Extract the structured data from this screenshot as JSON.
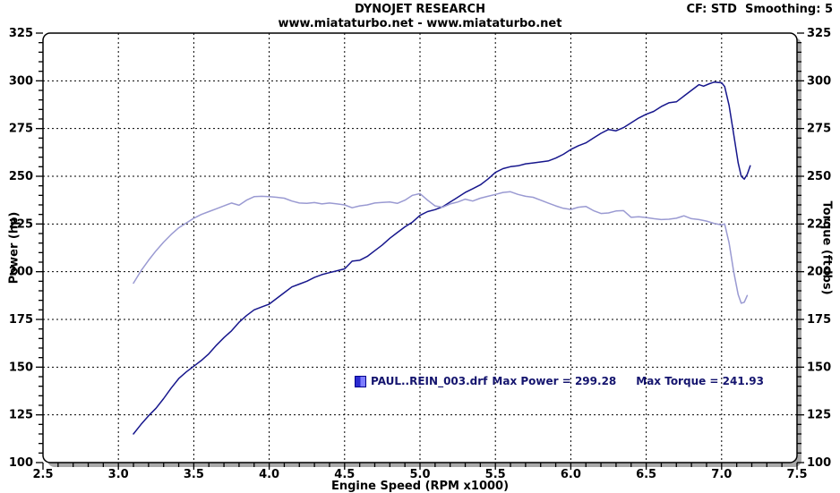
{
  "header": {
    "title": "DYNOJET RESEARCH",
    "subtitle": "www.miataturbo.net - www.miataturbo.net",
    "cf_note": "CF: STD  Smoothing: 5"
  },
  "legend": {
    "file": "PAUL..REIN_003.drf",
    "max_power": "Max Power = 299.28",
    "max_torque": "Max Torque = 241.93"
  },
  "colors": {
    "power_curve": "#16168c",
    "torque_curve": "#9a9ad2",
    "grid": "#000000",
    "shadow": "#a9a9a9",
    "plot_background": "#ffffff",
    "legend_text": "#14146e"
  },
  "chart_data": {
    "type": "line",
    "title": "DYNOJET RESEARCH",
    "subtitle": "www.miataturbo.net - www.miataturbo.net",
    "xlabel": "Engine Speed (RPM x1000)",
    "ylabel_left": "Power (hp)",
    "ylabel_right": "Torque (ft-lbs)",
    "xlim": [
      2.5,
      7.5
    ],
    "ylim": [
      100,
      325
    ],
    "x_ticks": [
      "2.5",
      "3.0",
      "3.5",
      "4.0",
      "4.5",
      "5.0",
      "5.5",
      "6.0",
      "6.5",
      "7.0",
      "7.5"
    ],
    "y_ticks": [
      "100",
      "125",
      "150",
      "175",
      "200",
      "225",
      "250",
      "275",
      "300",
      "325"
    ],
    "x_minor_step": 0.1,
    "y_minor_step": 5,
    "grid": "dashed at major ticks",
    "legend_position": "inside lower-center",
    "max_power": 299.28,
    "max_torque": 241.93,
    "smoothing": 5,
    "correction_factor": "STD",
    "series": [
      {
        "name": "Power (hp)",
        "data_name": "power-curve",
        "color": "#16168c",
        "points": [
          [
            3.1,
            115
          ],
          [
            3.15,
            120
          ],
          [
            3.2,
            124.5
          ],
          [
            3.25,
            128.5
          ],
          [
            3.3,
            133.5
          ],
          [
            3.35,
            139
          ],
          [
            3.4,
            144
          ],
          [
            3.45,
            147.5
          ],
          [
            3.5,
            150.5
          ],
          [
            3.55,
            153.5
          ],
          [
            3.6,
            157
          ],
          [
            3.65,
            161.5
          ],
          [
            3.7,
            165.5
          ],
          [
            3.75,
            169
          ],
          [
            3.8,
            173.5
          ],
          [
            3.85,
            177
          ],
          [
            3.9,
            180
          ],
          [
            3.95,
            181.5
          ],
          [
            4.0,
            183
          ],
          [
            4.05,
            186
          ],
          [
            4.1,
            189
          ],
          [
            4.15,
            192
          ],
          [
            4.2,
            193.5
          ],
          [
            4.25,
            195
          ],
          [
            4.3,
            197
          ],
          [
            4.35,
            198.5
          ],
          [
            4.4,
            199.5
          ],
          [
            4.45,
            200.5
          ],
          [
            4.5,
            201.5
          ],
          [
            4.55,
            205.5
          ],
          [
            4.6,
            206
          ],
          [
            4.65,
            208
          ],
          [
            4.7,
            211
          ],
          [
            4.75,
            214
          ],
          [
            4.8,
            217.5
          ],
          [
            4.85,
            220.5
          ],
          [
            4.9,
            223.5
          ],
          [
            4.95,
            226
          ],
          [
            5.0,
            229.5
          ],
          [
            5.05,
            231.5
          ],
          [
            5.1,
            232.5
          ],
          [
            5.15,
            234
          ],
          [
            5.2,
            236.5
          ],
          [
            5.25,
            239
          ],
          [
            5.3,
            241.5
          ],
          [
            5.35,
            243.5
          ],
          [
            5.4,
            245.5
          ],
          [
            5.45,
            248.5
          ],
          [
            5.5,
            252
          ],
          [
            5.55,
            254
          ],
          [
            5.6,
            255
          ],
          [
            5.65,
            255.5
          ],
          [
            5.7,
            256.5
          ],
          [
            5.75,
            257
          ],
          [
            5.8,
            257.5
          ],
          [
            5.85,
            258
          ],
          [
            5.9,
            259.5
          ],
          [
            5.95,
            261.5
          ],
          [
            6.0,
            264
          ],
          [
            6.05,
            266
          ],
          [
            6.1,
            267.5
          ],
          [
            6.15,
            270
          ],
          [
            6.2,
            272.5
          ],
          [
            6.25,
            274.5
          ],
          [
            6.3,
            273.8
          ],
          [
            6.35,
            275.5
          ],
          [
            6.4,
            278
          ],
          [
            6.45,
            280.5
          ],
          [
            6.5,
            282.5
          ],
          [
            6.55,
            284
          ],
          [
            6.6,
            286.5
          ],
          [
            6.65,
            288.5
          ],
          [
            6.7,
            289
          ],
          [
            6.75,
            292
          ],
          [
            6.8,
            295
          ],
          [
            6.85,
            298
          ],
          [
            6.88,
            297.2
          ],
          [
            6.92,
            298.5
          ],
          [
            6.95,
            299.3
          ],
          [
            7.0,
            299
          ],
          [
            7.02,
            297
          ],
          [
            7.05,
            287
          ],
          [
            7.08,
            272
          ],
          [
            7.11,
            257
          ],
          [
            7.13,
            250
          ],
          [
            7.15,
            248.5
          ],
          [
            7.17,
            251
          ],
          [
            7.19,
            255.5
          ]
        ]
      },
      {
        "name": "Torque (ft-lbs)",
        "data_name": "torque-curve",
        "color": "#9a9ad2",
        "points": [
          [
            3.1,
            194
          ],
          [
            3.15,
            200.5
          ],
          [
            3.2,
            206
          ],
          [
            3.25,
            211
          ],
          [
            3.3,
            215.5
          ],
          [
            3.35,
            219.5
          ],
          [
            3.4,
            223
          ],
          [
            3.45,
            225.5
          ],
          [
            3.5,
            228
          ],
          [
            3.55,
            230
          ],
          [
            3.6,
            231.5
          ],
          [
            3.65,
            233
          ],
          [
            3.7,
            234.5
          ],
          [
            3.75,
            236
          ],
          [
            3.8,
            234.8
          ],
          [
            3.85,
            237.5
          ],
          [
            3.9,
            239.3
          ],
          [
            3.95,
            239.5
          ],
          [
            4.0,
            239.3
          ],
          [
            4.05,
            239
          ],
          [
            4.1,
            238.5
          ],
          [
            4.15,
            237
          ],
          [
            4.2,
            236
          ],
          [
            4.25,
            235.8
          ],
          [
            4.3,
            236.2
          ],
          [
            4.35,
            235.5
          ],
          [
            4.4,
            236
          ],
          [
            4.45,
            235.5
          ],
          [
            4.5,
            235
          ],
          [
            4.55,
            233.5
          ],
          [
            4.6,
            234.5
          ],
          [
            4.65,
            235
          ],
          [
            4.7,
            236
          ],
          [
            4.75,
            236.3
          ],
          [
            4.8,
            236.5
          ],
          [
            4.85,
            235.8
          ],
          [
            4.9,
            237.5
          ],
          [
            4.95,
            240
          ],
          [
            5.0,
            240.9
          ],
          [
            5.05,
            237.5
          ],
          [
            5.1,
            234.5
          ],
          [
            5.15,
            233.8
          ],
          [
            5.2,
            235.5
          ],
          [
            5.25,
            236.5
          ],
          [
            5.3,
            238
          ],
          [
            5.35,
            237
          ],
          [
            5.4,
            238.5
          ],
          [
            5.45,
            239.5
          ],
          [
            5.5,
            240.5
          ],
          [
            5.55,
            241.5
          ],
          [
            5.6,
            241.9
          ],
          [
            5.65,
            240.5
          ],
          [
            5.7,
            239.5
          ],
          [
            5.75,
            239
          ],
          [
            5.8,
            237.5
          ],
          [
            5.85,
            236
          ],
          [
            5.9,
            234.5
          ],
          [
            5.95,
            233.2
          ],
          [
            6.0,
            232.6
          ],
          [
            6.05,
            233.8
          ],
          [
            6.1,
            234.2
          ],
          [
            6.15,
            232
          ],
          [
            6.2,
            230.5
          ],
          [
            6.25,
            230.8
          ],
          [
            6.3,
            231.8
          ],
          [
            6.35,
            232
          ],
          [
            6.4,
            228.5
          ],
          [
            6.45,
            228.8
          ],
          [
            6.5,
            228.4
          ],
          [
            6.55,
            227.8
          ],
          [
            6.6,
            227.3
          ],
          [
            6.65,
            227.5
          ],
          [
            6.7,
            228
          ],
          [
            6.75,
            229.3
          ],
          [
            6.8,
            227.8
          ],
          [
            6.85,
            227.3
          ],
          [
            6.9,
            226.5
          ],
          [
            6.95,
            225.3
          ],
          [
            7.0,
            224.5
          ],
          [
            7.02,
            225
          ],
          [
            7.05,
            215
          ],
          [
            7.08,
            200
          ],
          [
            7.11,
            188
          ],
          [
            7.13,
            183.5
          ],
          [
            7.15,
            184
          ],
          [
            7.17,
            187.5
          ]
        ]
      }
    ]
  }
}
